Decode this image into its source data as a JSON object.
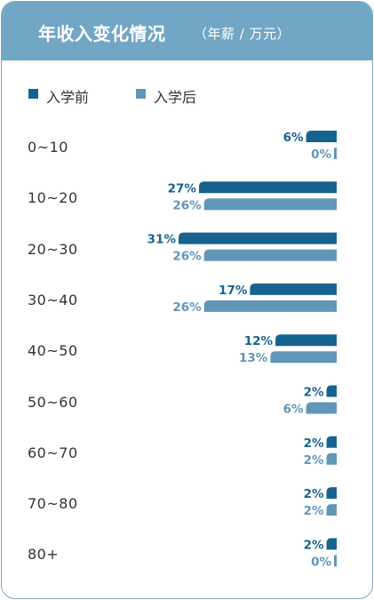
{
  "header": {
    "title": "年收入变化情况",
    "subtitle": "（年薪 / 万元）"
  },
  "colors": {
    "before": "#17638f",
    "after": "#6196b8",
    "header_bg": "#72a6c5"
  },
  "chart_data": {
    "type": "bar",
    "orientation": "horizontal",
    "title": "年收入变化情况",
    "subtitle": "（年薪 / 万元）",
    "legend_position": "top-left",
    "categories": [
      "0~10",
      "10~20",
      "20~30",
      "30~40",
      "40~50",
      "50~60",
      "60~70",
      "70~80",
      "80+"
    ],
    "series": [
      {
        "name": "入学前",
        "values": [
          6,
          27,
          31,
          17,
          12,
          2,
          2,
          2,
          2
        ],
        "labels": [
          "6%",
          "27%",
          "31%",
          "17%",
          "12%",
          "2%",
          "2%",
          "2%",
          "2%"
        ]
      },
      {
        "name": "入学后",
        "values": [
          0,
          26,
          26,
          26,
          13,
          6,
          2,
          2,
          0
        ],
        "labels": [
          "0%",
          "26%",
          "26%",
          "26%",
          "13%",
          "6%",
          "2%",
          "2%",
          "0%"
        ]
      }
    ],
    "unit": "%",
    "xlim": [
      0,
      31
    ],
    "grid": false
  }
}
